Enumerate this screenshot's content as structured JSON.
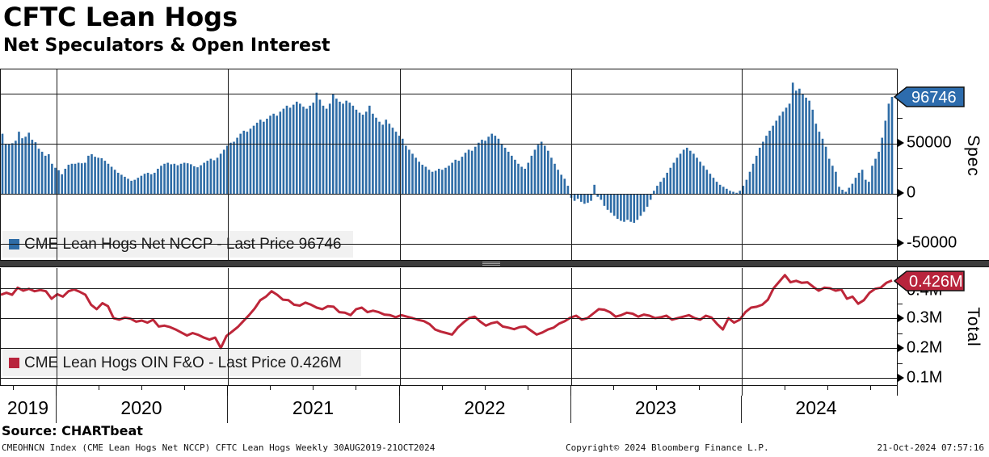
{
  "header": {
    "title": "CFTC Lean Hogs",
    "subtitle": "Net Speculators & Open Interest"
  },
  "top_panel": {
    "legend_label": "CME Lean Hogs Net NCCP - Last Price 96746",
    "axis_title": "Spec",
    "badge_text": "96746",
    "badge_color": "#2d6cad",
    "bar_color": "#2e6ca6",
    "y_ticks": [
      {
        "label": "50000",
        "value": 50000
      },
      {
        "label": "0",
        "value": 0
      },
      {
        "label": "-50000",
        "value": -50000
      }
    ],
    "gridline_values": [
      100000,
      50000,
      0,
      -50000
    ],
    "minor_tick_values": [
      75000,
      25000,
      -25000
    ]
  },
  "bottom_panel": {
    "legend_label": "CME Lean Hogs OIN F&O - Last Price 0.426M",
    "axis_title": "Total",
    "badge_text": "0.426M",
    "badge_color": "#b8243c",
    "line_color": "#bd2639",
    "y_ticks": [
      {
        "label": "0.4M",
        "value": 0.4,
        "covered_by_badge": true
      },
      {
        "label": "0.3M",
        "value": 0.3
      },
      {
        "label": "0.2M",
        "value": 0.2
      },
      {
        "label": "0.1M",
        "value": 0.1
      }
    ],
    "gridline_values": [
      0.4,
      0.3,
      0.2,
      0.1
    ],
    "minor_tick_values": [
      0.35,
      0.25,
      0.15
    ]
  },
  "x_axis": {
    "years": [
      "2019",
      "2020",
      "2021",
      "2022",
      "2023",
      "2024"
    ]
  },
  "source_line": "Source: CHARTbeat",
  "footer": {
    "left": "CMEOHNCN Index (CME Lean Hogs Net NCCP) CFTC Lean Hogs  Weekly 30AUG2019-21OCT2024",
    "center": "Copyright© 2024 Bloomberg Finance L.P.",
    "right": "21-Oct-2024 07:57:16"
  },
  "chart_data": [
    {
      "type": "bar",
      "name": "CME Lean Hogs Net NCCP",
      "frequency": "weekly",
      "date_range": "30AUG2019-21OCT2024",
      "unit": "contracts",
      "last_price": 96746,
      "ylabel": "Spec",
      "ylim": [
        -67000,
        124000
      ],
      "grid": true,
      "values": [
        60000,
        50000,
        50000,
        50500,
        53000,
        62000,
        55500,
        57000,
        61000,
        54000,
        51500,
        45000,
        42000,
        38000,
        39500,
        30000,
        26000,
        23500,
        19500,
        25000,
        29000,
        30000,
        30000,
        31000,
        30500,
        31000,
        38000,
        39500,
        37000,
        36000,
        35500,
        33000,
        30000,
        27000,
        24000,
        21000,
        19000,
        17000,
        15000,
        13000,
        14000,
        16000,
        18000,
        20000,
        21000,
        19500,
        21000,
        25000,
        28000,
        30000,
        31000,
        29500,
        30000,
        28500,
        30000,
        31000,
        30500,
        29500,
        27500,
        26500,
        28500,
        31000,
        33000,
        35000,
        33500,
        36000,
        40000,
        44000,
        48000,
        51000,
        52000,
        56000,
        60000,
        63000,
        62000,
        65000,
        68000,
        71000,
        74000,
        72000,
        75000,
        78000,
        80000,
        78000,
        82000,
        85000,
        88000,
        86000,
        89000,
        92000,
        90000,
        87000,
        85000,
        88000,
        91000,
        101000,
        94000,
        88000,
        85000,
        90000,
        100000,
        95000,
        92000,
        90000,
        93000,
        91000,
        88000,
        84000,
        81000,
        79000,
        82000,
        88000,
        80000,
        76000,
        72000,
        69000,
        74000,
        70000,
        66000,
        62000,
        58000,
        55000,
        48000,
        44000,
        40000,
        36000,
        32000,
        29000,
        27000,
        24000,
        22000,
        23000,
        25000,
        24000,
        26000,
        28000,
        31000,
        34000,
        33000,
        37000,
        41000,
        44000,
        43000,
        47000,
        51000,
        54000,
        53000,
        57000,
        60000,
        58000,
        55000,
        50000,
        46000,
        42000,
        38000,
        34000,
        30000,
        27000,
        25000,
        31000,
        38000,
        44000,
        49000,
        52000,
        48000,
        43000,
        36000,
        30000,
        24000,
        19000,
        15000,
        8000,
        -4000,
        -7000,
        -5000,
        -8000,
        -10000,
        -9000,
        -7000,
        9000,
        -3000,
        -6000,
        -12000,
        -16000,
        -19000,
        -22000,
        -25000,
        -27000,
        -28000,
        -26000,
        -28000,
        -29000,
        -26000,
        -22000,
        -18000,
        -13000,
        -6000,
        3000,
        8000,
        12000,
        16000,
        21000,
        26000,
        31000,
        36000,
        40000,
        44000,
        46000,
        43000,
        40000,
        36000,
        32000,
        28000,
        24000,
        20000,
        16000,
        12000,
        9000,
        7000,
        5000,
        3000,
        2000,
        1000,
        3000,
        8000,
        14000,
        22000,
        30000,
        38000,
        46000,
        52000,
        58000,
        63000,
        68000,
        73000,
        78000,
        82000,
        86000,
        90000,
        111000,
        103000,
        105000,
        100000,
        96000,
        93000,
        84000,
        70000,
        62000,
        55000,
        47000,
        35000,
        28000,
        22000,
        7000,
        4000,
        2000,
        6000,
        10000,
        16000,
        21000,
        24000,
        14000,
        12000,
        28000,
        35000,
        42000,
        56000,
        73000,
        90000,
        96746
      ]
    },
    {
      "type": "line",
      "name": "CME Lean Hogs OIN F&O",
      "frequency": "weekly",
      "date_range": "30AUG2019-21OCT2024",
      "unit": "contracts (millions)",
      "last_price": 0.426,
      "ylabel": "Total",
      "ylim": [
        0.076,
        0.467
      ],
      "grid": true,
      "values": [
        0.378,
        0.385,
        0.378,
        0.402,
        0.392,
        0.398,
        0.39,
        0.394,
        0.39,
        0.365,
        0.38,
        0.372,
        0.39,
        0.396,
        0.388,
        0.378,
        0.345,
        0.33,
        0.35,
        0.34,
        0.3,
        0.295,
        0.302,
        0.298,
        0.288,
        0.292,
        0.285,
        0.295,
        0.272,
        0.275,
        0.27,
        0.262,
        0.252,
        0.242,
        0.25,
        0.244,
        0.235,
        0.228,
        0.235,
        0.2,
        0.24,
        0.255,
        0.27,
        0.29,
        0.31,
        0.332,
        0.36,
        0.372,
        0.39,
        0.378,
        0.362,
        0.36,
        0.345,
        0.342,
        0.352,
        0.345,
        0.335,
        0.33,
        0.34,
        0.338,
        0.32,
        0.318,
        0.31,
        0.33,
        0.335,
        0.32,
        0.325,
        0.32,
        0.312,
        0.31,
        0.303,
        0.31,
        0.305,
        0.3,
        0.294,
        0.29,
        0.28,
        0.262,
        0.255,
        0.25,
        0.245,
        0.268,
        0.285,
        0.3,
        0.305,
        0.288,
        0.275,
        0.283,
        0.287,
        0.272,
        0.268,
        0.263,
        0.27,
        0.272,
        0.258,
        0.245,
        0.252,
        0.262,
        0.268,
        0.282,
        0.29,
        0.302,
        0.308,
        0.295,
        0.3,
        0.315,
        0.33,
        0.328,
        0.32,
        0.305,
        0.31,
        0.318,
        0.315,
        0.305,
        0.312,
        0.308,
        0.3,
        0.303,
        0.308,
        0.295,
        0.3,
        0.305,
        0.31,
        0.3,
        0.295,
        0.308,
        0.302,
        0.28,
        0.262,
        0.3,
        0.285,
        0.295,
        0.32,
        0.335,
        0.338,
        0.345,
        0.362,
        0.4,
        0.422,
        0.444,
        0.42,
        0.425,
        0.418,
        0.42,
        0.405,
        0.392,
        0.402,
        0.4,
        0.392,
        0.396,
        0.365,
        0.372,
        0.348,
        0.36,
        0.385,
        0.398,
        0.402,
        0.418,
        0.426
      ]
    }
  ]
}
